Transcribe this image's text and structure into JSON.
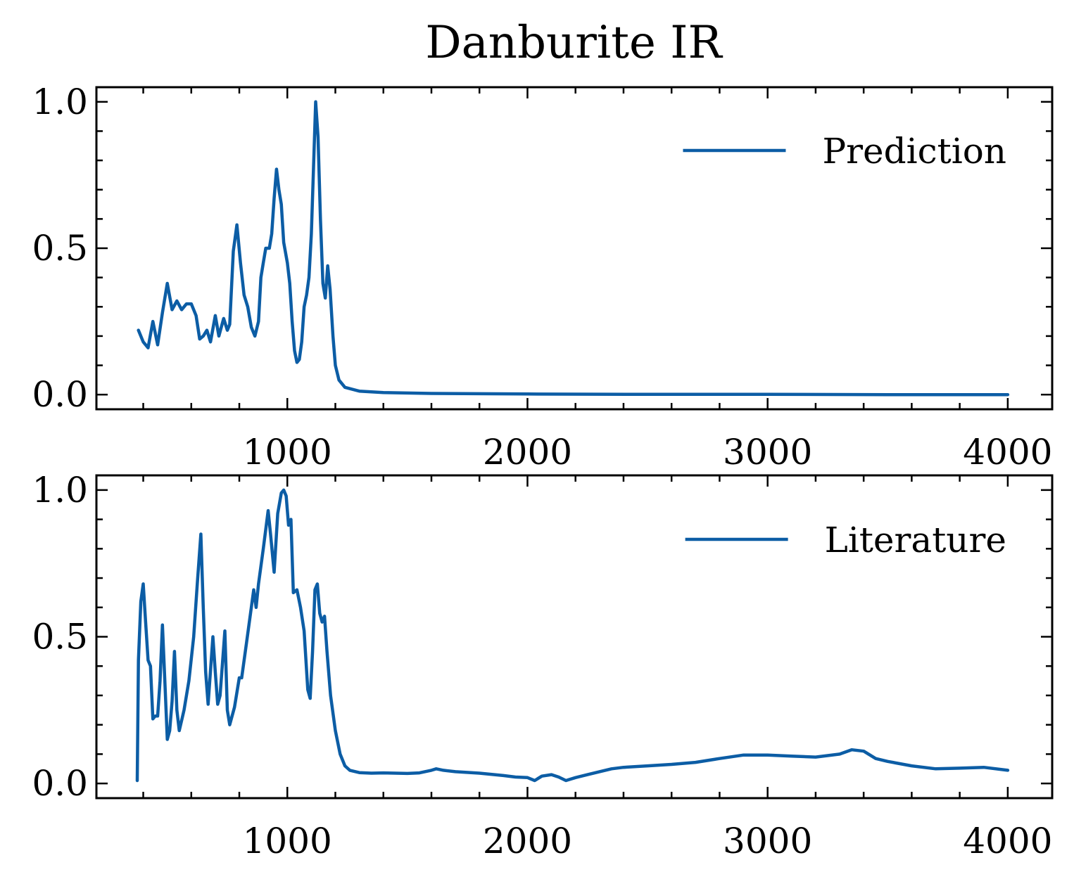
{
  "chart_data": [
    {
      "type": "line",
      "title": "Danburite IR",
      "xlabel": "",
      "ylabel": "",
      "xlim": [
        205,
        4185
      ],
      "ylim": [
        -0.05,
        1.05
      ],
      "xticks": [
        1000,
        2000,
        3000,
        4000
      ],
      "yticks": [
        0.0,
        0.5,
        1.0
      ],
      "x_minor_step": 200,
      "y_minor_step": 0.1,
      "grid": false,
      "legend_position": "top-right",
      "color": "#0C5DA5",
      "series": [
        {
          "name": "Prediction",
          "points": [
            [
              380,
              0.22
            ],
            [
              400,
              0.18
            ],
            [
              420,
              0.16
            ],
            [
              440,
              0.25
            ],
            [
              460,
              0.17
            ],
            [
              480,
              0.28
            ],
            [
              500,
              0.38
            ],
            [
              520,
              0.29
            ],
            [
              540,
              0.32
            ],
            [
              560,
              0.29
            ],
            [
              580,
              0.31
            ],
            [
              600,
              0.31
            ],
            [
              620,
              0.27
            ],
            [
              635,
              0.19
            ],
            [
              650,
              0.2
            ],
            [
              665,
              0.22
            ],
            [
              680,
              0.18
            ],
            [
              700,
              0.27
            ],
            [
              715,
              0.2
            ],
            [
              735,
              0.26
            ],
            [
              750,
              0.22
            ],
            [
              760,
              0.24
            ],
            [
              775,
              0.49
            ],
            [
              790,
              0.58
            ],
            [
              805,
              0.45
            ],
            [
              820,
              0.34
            ],
            [
              835,
              0.3
            ],
            [
              850,
              0.23
            ],
            [
              865,
              0.2
            ],
            [
              880,
              0.25
            ],
            [
              890,
              0.4
            ],
            [
              900,
              0.45
            ],
            [
              910,
              0.5
            ],
            [
              925,
              0.5
            ],
            [
              935,
              0.55
            ],
            [
              945,
              0.67
            ],
            [
              955,
              0.77
            ],
            [
              965,
              0.7
            ],
            [
              975,
              0.65
            ],
            [
              985,
              0.52
            ],
            [
              1000,
              0.45
            ],
            [
              1010,
              0.38
            ],
            [
              1020,
              0.25
            ],
            [
              1030,
              0.15
            ],
            [
              1040,
              0.11
            ],
            [
              1050,
              0.12
            ],
            [
              1060,
              0.18
            ],
            [
              1070,
              0.3
            ],
            [
              1080,
              0.34
            ],
            [
              1090,
              0.4
            ],
            [
              1100,
              0.55
            ],
            [
              1110,
              0.8
            ],
            [
              1118,
              1.0
            ],
            [
              1128,
              0.88
            ],
            [
              1138,
              0.6
            ],
            [
              1148,
              0.38
            ],
            [
              1158,
              0.33
            ],
            [
              1168,
              0.44
            ],
            [
              1178,
              0.36
            ],
            [
              1190,
              0.2
            ],
            [
              1200,
              0.1
            ],
            [
              1215,
              0.05
            ],
            [
              1240,
              0.025
            ],
            [
              1300,
              0.012
            ],
            [
              1400,
              0.007
            ],
            [
              1600,
              0.004
            ],
            [
              2000,
              0.002
            ],
            [
              2500,
              0.001
            ],
            [
              3000,
              0.001
            ],
            [
              3500,
              0.0
            ],
            [
              4000,
              0.0
            ]
          ]
        },
        {
          "name": "Literature",
          "points": [
            [
              375,
              0.01
            ],
            [
              380,
              0.42
            ],
            [
              390,
              0.62
            ],
            [
              400,
              0.68
            ],
            [
              410,
              0.55
            ],
            [
              420,
              0.42
            ],
            [
              430,
              0.4
            ],
            [
              440,
              0.22
            ],
            [
              450,
              0.23
            ],
            [
              460,
              0.23
            ],
            [
              470,
              0.35
            ],
            [
              480,
              0.54
            ],
            [
              490,
              0.35
            ],
            [
              500,
              0.15
            ],
            [
              510,
              0.18
            ],
            [
              520,
              0.28
            ],
            [
              530,
              0.45
            ],
            [
              540,
              0.25
            ],
            [
              550,
              0.18
            ],
            [
              570,
              0.25
            ],
            [
              590,
              0.35
            ],
            [
              610,
              0.5
            ],
            [
              625,
              0.68
            ],
            [
              640,
              0.85
            ],
            [
              650,
              0.6
            ],
            [
              660,
              0.38
            ],
            [
              670,
              0.27
            ],
            [
              690,
              0.5
            ],
            [
              700,
              0.38
            ],
            [
              710,
              0.27
            ],
            [
              720,
              0.3
            ],
            [
              740,
              0.52
            ],
            [
              750,
              0.25
            ],
            [
              760,
              0.2
            ],
            [
              780,
              0.26
            ],
            [
              800,
              0.36
            ],
            [
              810,
              0.36
            ],
            [
              830,
              0.48
            ],
            [
              850,
              0.6
            ],
            [
              860,
              0.66
            ],
            [
              870,
              0.6
            ],
            [
              880,
              0.68
            ],
            [
              900,
              0.8
            ],
            [
              920,
              0.93
            ],
            [
              930,
              0.85
            ],
            [
              945,
              0.72
            ],
            [
              960,
              0.92
            ],
            [
              975,
              0.99
            ],
            [
              985,
              1.0
            ],
            [
              995,
              0.98
            ],
            [
              1005,
              0.88
            ],
            [
              1015,
              0.9
            ],
            [
              1025,
              0.65
            ],
            [
              1040,
              0.66
            ],
            [
              1055,
              0.6
            ],
            [
              1070,
              0.52
            ],
            [
              1085,
              0.32
            ],
            [
              1095,
              0.29
            ],
            [
              1105,
              0.45
            ],
            [
              1115,
              0.66
            ],
            [
              1125,
              0.68
            ],
            [
              1135,
              0.58
            ],
            [
              1145,
              0.55
            ],
            [
              1155,
              0.57
            ],
            [
              1165,
              0.45
            ],
            [
              1180,
              0.3
            ],
            [
              1200,
              0.18
            ],
            [
              1220,
              0.1
            ],
            [
              1240,
              0.06
            ],
            [
              1260,
              0.045
            ],
            [
              1300,
              0.037
            ],
            [
              1350,
              0.035
            ],
            [
              1400,
              0.036
            ],
            [
              1450,
              0.035
            ],
            [
              1500,
              0.034
            ],
            [
              1550,
              0.036
            ],
            [
              1600,
              0.045
            ],
            [
              1620,
              0.05
            ],
            [
              1650,
              0.045
            ],
            [
              1700,
              0.04
            ],
            [
              1800,
              0.035
            ],
            [
              1900,
              0.027
            ],
            [
              1950,
              0.022
            ],
            [
              2000,
              0.02
            ],
            [
              2030,
              0.01
            ],
            [
              2060,
              0.025
            ],
            [
              2100,
              0.03
            ],
            [
              2130,
              0.022
            ],
            [
              2160,
              0.01
            ],
            [
              2200,
              0.02
            ],
            [
              2250,
              0.03
            ],
            [
              2300,
              0.04
            ],
            [
              2350,
              0.05
            ],
            [
              2400,
              0.055
            ],
            [
              2500,
              0.06
            ],
            [
              2600,
              0.065
            ],
            [
              2700,
              0.072
            ],
            [
              2800,
              0.085
            ],
            [
              2900,
              0.097
            ],
            [
              3000,
              0.097
            ],
            [
              3100,
              0.093
            ],
            [
              3200,
              0.09
            ],
            [
              3300,
              0.1
            ],
            [
              3350,
              0.115
            ],
            [
              3400,
              0.11
            ],
            [
              3450,
              0.085
            ],
            [
              3500,
              0.075
            ],
            [
              3600,
              0.06
            ],
            [
              3700,
              0.05
            ],
            [
              3800,
              0.052
            ],
            [
              3900,
              0.055
            ],
            [
              4000,
              0.045
            ]
          ]
        }
      ]
    }
  ]
}
